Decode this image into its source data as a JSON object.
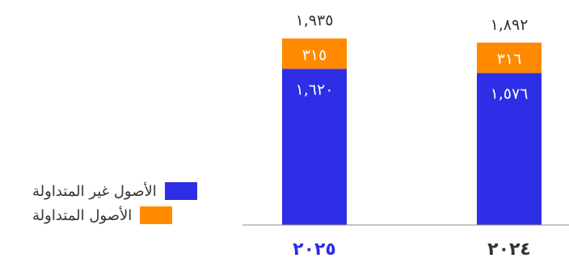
{
  "chart_data": {
    "type": "bar",
    "stacked": true,
    "categories": [
      "٢٠٢٥",
      "٢٠٢٤"
    ],
    "series": [
      {
        "name": "الأصول غير المتداولة",
        "color": "#2e2ee6",
        "values": [
          1620,
          1576
        ],
        "labels": [
          "١,٦٢٠",
          "١,٥٧٦"
        ]
      },
      {
        "name": "الأصول المتداولة",
        "color": "#ff8a00",
        "values": [
          315,
          316
        ],
        "labels": [
          "٣١٥",
          "٣١٦"
        ]
      }
    ],
    "totals": [
      1935,
      1892
    ],
    "total_labels": [
      "١,٩٣٥",
      "١,٨٩٢"
    ],
    "ylim": [
      0,
      2200
    ],
    "grid": false,
    "legend_position": "left",
    "highlight_category_color": "#2e2ee6",
    "category_label_color": "#333333"
  }
}
